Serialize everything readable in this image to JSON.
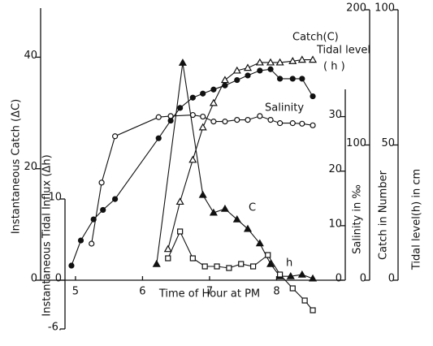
{
  "chart_data": {
    "type": "line",
    "x_label": "Time of Hour at PM",
    "xlim": [
      4.48,
      9.0
    ],
    "xticks": [
      5,
      6,
      7,
      8
    ],
    "y_axes": [
      {
        "label": "Instantaneous Catch (ΔC)",
        "lim": [
          0,
          48.8
        ],
        "ticks": [
          0,
          20,
          40
        ]
      },
      {
        "label": "Instantaneous Tidal Influx (Δh)",
        "lim": [
          -6,
          10
        ],
        "ticks": [
          {
            "value": -6,
            "label": "-6."
          },
          0,
          10
        ]
      },
      {
        "label": "Salinity in ‰",
        "lim": [
          0,
          35
        ],
        "ticks": [
          0,
          10,
          20,
          30
        ]
      },
      {
        "label": "Catch in Number",
        "lim": [
          0,
          200
        ],
        "ticks": [
          0,
          100,
          200
        ]
      },
      {
        "label": "Tidal level(h) in cm",
        "lim": [
          0,
          100
        ],
        "ticks": [
          0,
          50,
          100
        ]
      }
    ],
    "series": [
      {
        "labels": [
          "Catch(C)"
        ],
        "axis": 3,
        "marker": "open-triangle",
        "color": "#111",
        "x": [
          6.38,
          6.56,
          6.75,
          6.9,
          7.06,
          7.23,
          7.41,
          7.57,
          7.75,
          7.91,
          8.05,
          8.24,
          8.38,
          8.54
        ],
        "values": [
          23,
          58,
          89,
          113,
          131,
          148,
          155,
          157,
          161,
          161,
          161,
          162,
          163,
          163
        ]
      },
      {
        "labels": [
          "Tidal level",
          "( h )"
        ],
        "axis": 4,
        "marker": "filled-circle",
        "color": "#111",
        "x": [
          4.94,
          5.08,
          5.27,
          5.41,
          5.59,
          6.24,
          6.42,
          6.56,
          6.75,
          6.9,
          7.06,
          7.23,
          7.41,
          7.57,
          7.75,
          7.91,
          8.05,
          8.24,
          8.38,
          8.54
        ],
        "values": [
          5.4,
          14.7,
          22.5,
          26,
          30,
          52.5,
          59,
          63.7,
          67.5,
          69,
          70.5,
          72,
          74,
          75.7,
          77.5,
          78,
          74.5,
          74.5,
          74.5,
          68
        ]
      },
      {
        "labels": [
          "Salinity"
        ],
        "axis": 2,
        "marker": "open-circle",
        "color": "#111",
        "x": [
          5.24,
          5.39,
          5.59,
          6.24,
          6.42,
          6.75,
          6.9,
          7.06,
          7.23,
          7.41,
          7.57,
          7.75,
          7.91,
          8.05,
          8.24,
          8.38,
          8.54
        ],
        "values": [
          6.7,
          17.9,
          26.4,
          29.9,
          30.1,
          30.3,
          30,
          29.1,
          29.1,
          29.4,
          29.4,
          30.1,
          29.4,
          28.8,
          28.8,
          28.7,
          28.4
        ]
      },
      {
        "labels": [
          "C"
        ],
        "axis": 0,
        "marker": "filled-triangle",
        "color": "#111",
        "x": [
          6.21,
          6.6,
          6.9,
          7.06,
          7.23,
          7.41,
          7.57,
          7.75,
          7.91,
          8.05,
          8.21,
          8.38,
          8.54
        ],
        "values": [
          2.9,
          39,
          15.3,
          12.1,
          12.8,
          10.9,
          9.2,
          6.6,
          2.9,
          0.7,
          0.7,
          1,
          0.3
        ]
      },
      {
        "labels": [
          "h"
        ],
        "axis": 1,
        "marker": "open-square",
        "color": "#111",
        "x": [
          6.38,
          6.56,
          6.75,
          6.93,
          7.11,
          7.29,
          7.47,
          7.65,
          7.87,
          8.05,
          8.24,
          8.42,
          8.54
        ],
        "values": [
          2.7,
          6,
          2.7,
          1.7,
          1.7,
          1.5,
          2,
          1.7,
          3.1,
          0.7,
          -1,
          -2.5,
          -3.7
        ]
      }
    ]
  }
}
